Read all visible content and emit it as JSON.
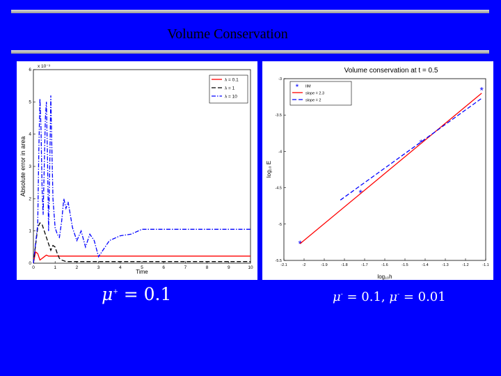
{
  "slide": {
    "title": "Volume Conservation",
    "formula_left": {
      "symbol": "μ",
      "sup": "+",
      "rhs": " = 0.1"
    },
    "formula_right": {
      "first": {
        "symbol": "μ",
        "sup": "-",
        "rhs": " = 0.1,"
      },
      "second": {
        "symbol": "μ",
        "sup": "-",
        "rhs": " = 0.01"
      }
    }
  },
  "chart_data": [
    {
      "type": "line",
      "title": "",
      "xlabel": "Time",
      "ylabel": "Absolute error in area",
      "y_multiplier": "x 10⁻³",
      "xlim": [
        0,
        10
      ],
      "ylim": [
        0,
        6
      ],
      "x_ticks": [
        "0",
        "1",
        "2",
        "3",
        "4",
        "5",
        "6",
        "7",
        "8",
        "9",
        "10"
      ],
      "y_ticks": [
        "0",
        "1",
        "2",
        "3",
        "4",
        "5",
        "6"
      ],
      "legend_position": "top-right",
      "series": [
        {
          "name": "λ = 0.1",
          "color": "#ff0000",
          "style": "solid",
          "x": [
            0,
            0.1,
            0.2,
            0.3,
            0.4,
            0.5,
            0.6,
            0.7,
            1.0,
            1.5,
            2,
            4,
            6,
            8,
            10
          ],
          "y": [
            0,
            0.35,
            0.3,
            0.1,
            0.15,
            0.2,
            0.25,
            0.22,
            0.22,
            0.22,
            0.22,
            0.22,
            0.22,
            0.22,
            0.22
          ]
        },
        {
          "name": "λ = 1",
          "color": "#000000",
          "style": "dashed",
          "x": [
            0,
            0.2,
            0.3,
            0.4,
            0.5,
            0.6,
            0.7,
            0.8,
            0.9,
            1.0,
            1.1,
            1.2,
            1.3,
            1.5,
            2,
            4,
            6,
            8,
            10
          ],
          "y": [
            0,
            1.1,
            1.25,
            1.2,
            1.0,
            0.8,
            0.6,
            0.4,
            0.55,
            0.5,
            0.3,
            0.15,
            0.1,
            0.05,
            0.05,
            0.05,
            0.05,
            0.05,
            0.05
          ]
        },
        {
          "name": "λ = 10",
          "color": "#0000ff",
          "style": "dashdot",
          "x": [
            0,
            0.2,
            0.25,
            0.3,
            0.35,
            0.4,
            0.45,
            0.5,
            0.55,
            0.6,
            0.65,
            0.7,
            0.75,
            0.8,
            0.85,
            0.9,
            1.0,
            1.1,
            1.2,
            1.3,
            1.4,
            1.5,
            1.6,
            1.8,
            2.0,
            2.2,
            2.4,
            2.6,
            2.8,
            3.0,
            3.2,
            3.5,
            4.0,
            4.5,
            5.0,
            6.0,
            8.0,
            10.0
          ],
          "y": [
            0,
            1.2,
            3.5,
            5.1,
            4.2,
            2.3,
            1.5,
            3.0,
            4.5,
            5.0,
            3.2,
            1.0,
            2.9,
            5.2,
            3.6,
            2.0,
            1.1,
            0.9,
            0.8,
            1.3,
            2.0,
            1.7,
            1.9,
            1.1,
            0.7,
            1.0,
            0.5,
            0.9,
            0.7,
            0.2,
            0.4,
            0.7,
            0.85,
            0.9,
            1.05,
            1.05,
            1.05,
            1.05
          ]
        }
      ]
    },
    {
      "type": "line",
      "title": "Volume conservation at t = 0.5",
      "xlabel": "log₁₀h",
      "ylabel": "log₁₀ E",
      "xlim": [
        -2.1,
        -1.1
      ],
      "ylim": [
        -5.5,
        -3
      ],
      "x_ticks": [
        "-2.1",
        "-2",
        "-1.9",
        "-1.8",
        "-1.7",
        "-1.6",
        "-1.5",
        "-1.4",
        "-1.3",
        "-1.2",
        "-1.1"
      ],
      "y_ticks": [
        "-3",
        "-3.5",
        "-4",
        "-4.5",
        "-5",
        "-5.5"
      ],
      "legend_position": "top-left",
      "series": [
        {
          "name": "IIM",
          "color": "#0000ff",
          "style": "markers",
          "marker": "*",
          "x": [
            -2.02,
            -1.72,
            -1.42,
            -1.12
          ],
          "y": [
            -5.27,
            -4.57,
            -3.88,
            -3.16
          ]
        },
        {
          "name": "slope = 2.3",
          "color": "#ff0000",
          "style": "solid",
          "x": [
            -2.02,
            -1.12
          ],
          "y": [
            -5.27,
            -3.2
          ]
        },
        {
          "name": "slope = 2",
          "color": "#0000ff",
          "style": "dashed",
          "x": [
            -1.82,
            -1.12
          ],
          "y": [
            -4.67,
            -3.27
          ]
        }
      ]
    }
  ]
}
